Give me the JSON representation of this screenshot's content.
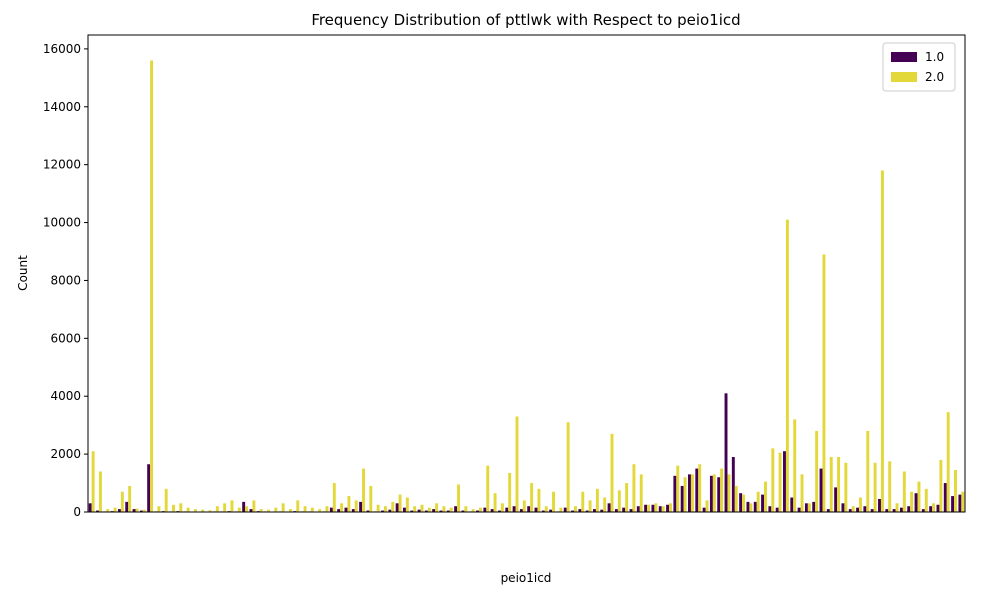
{
  "chart_data": {
    "type": "bar",
    "title": "Frequency Distribution of pttlwk with Respect to peio1icd",
    "x_label": "peio1icd",
    "y_label": "Count",
    "categories": [
      null,
      null,
      null,
      null,
      null,
      null,
      null,
      null,
      null,
      null,
      null,
      null,
      null,
      null,
      null,
      null,
      null,
      null,
      null,
      null,
      null,
      null,
      null,
      null,
      null,
      null,
      null,
      null,
      null,
      null,
      null,
      null,
      null,
      null,
      null,
      null,
      null,
      null,
      null,
      null,
      null,
      null,
      null,
      null,
      null,
      null,
      null,
      null,
      null,
      null,
      null,
      null,
      null,
      null,
      null,
      null,
      null,
      null,
      null,
      null,
      null,
      null,
      null,
      null,
      null,
      null,
      null,
      null,
      null,
      null,
      null,
      null,
      null,
      null,
      null,
      null,
      null,
      null,
      null,
      null,
      null,
      null,
      null,
      null,
      null,
      null,
      null,
      null,
      null,
      null,
      null,
      null,
      null,
      null,
      null,
      null,
      null,
      null,
      null,
      null,
      null,
      null,
      null,
      null,
      null,
      null,
      null,
      null,
      null,
      null,
      null,
      null,
      null,
      null,
      null,
      null,
      null,
      null,
      null,
      null
    ],
    "series": [
      {
        "name": "1.0",
        "color": "#440154",
        "values": [
          300,
          50,
          20,
          30,
          100,
          350,
          100,
          50,
          1650,
          20,
          30,
          20,
          30,
          20,
          10,
          10,
          10,
          20,
          20,
          30,
          20,
          350,
          100,
          30,
          20,
          10,
          20,
          10,
          30,
          20,
          20,
          10,
          20,
          150,
          100,
          150,
          100,
          350,
          50,
          20,
          50,
          80,
          300,
          150,
          50,
          80,
          50,
          100,
          50,
          50,
          200,
          50,
          20,
          50,
          150,
          100,
          50,
          150,
          200,
          100,
          200,
          150,
          50,
          80,
          20,
          150,
          50,
          100,
          50,
          100,
          80,
          300,
          100,
          150,
          100,
          200,
          250,
          250,
          200,
          250,
          1250,
          900,
          1300,
          1500,
          150,
          1250,
          1200,
          4100,
          1900,
          650,
          350,
          350,
          600,
          200,
          150,
          2100,
          500,
          150,
          300,
          350,
          1500,
          100,
          850,
          300,
          100,
          150,
          200,
          100,
          450,
          100,
          100,
          150,
          200,
          650,
          100,
          200,
          250,
          1000,
          550,
          600
        ]
      },
      {
        "name": "2.0",
        "color": "#e3d83a",
        "values": [
          2100,
          1400,
          100,
          150,
          700,
          900,
          120,
          80,
          15600,
          200,
          800,
          250,
          300,
          150,
          100,
          80,
          60,
          200,
          300,
          400,
          150,
          200,
          400,
          100,
          80,
          150,
          300,
          100,
          400,
          200,
          150,
          100,
          200,
          1000,
          300,
          550,
          400,
          1500,
          900,
          250,
          200,
          350,
          600,
          500,
          200,
          250,
          150,
          300,
          200,
          150,
          950,
          200,
          100,
          150,
          1600,
          650,
          300,
          1350,
          3300,
          400,
          1000,
          800,
          200,
          700,
          150,
          3100,
          200,
          700,
          400,
          800,
          500,
          2700,
          750,
          1000,
          1650,
          1300,
          250,
          300,
          200,
          300,
          1600,
          1200,
          1300,
          1650,
          400,
          1300,
          1500,
          1300,
          900,
          600,
          300,
          700,
          1050,
          2200,
          2050,
          10100,
          3200,
          1300,
          300,
          2800,
          8900,
          1900,
          1900,
          1700,
          200,
          500,
          2800,
          1700,
          11800,
          1750,
          300,
          1400,
          700,
          1050,
          800,
          300,
          1800,
          3450,
          1450,
          700
        ]
      }
    ],
    "ylim": [
      0,
      16480
    ],
    "yticks": [
      0,
      2000,
      4000,
      6000,
      8000,
      10000,
      12000,
      14000,
      16000
    ],
    "legend": "upper right"
  }
}
